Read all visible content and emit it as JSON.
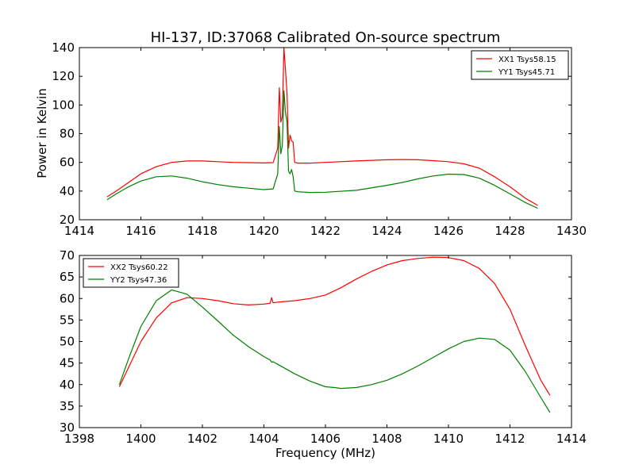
{
  "chart_data": [
    {
      "type": "line",
      "title": "HI-137, ID:37068 Calibrated On-source spectrum",
      "xlabel": "",
      "ylabel": "Power in Kelvin",
      "xlim": [
        1414,
        1430
      ],
      "ylim": [
        20,
        140
      ],
      "xticks": [
        1414,
        1416,
        1418,
        1420,
        1422,
        1424,
        1426,
        1428,
        1430
      ],
      "yticks": [
        20,
        40,
        60,
        80,
        100,
        120,
        140
      ],
      "legend_position": "top-right",
      "series": [
        {
          "name": "XX1 Tsys58.15",
          "color": "#ff0000",
          "x": [
            1414.9,
            1415.2,
            1415.6,
            1416.0,
            1416.5,
            1417.0,
            1417.5,
            1418.0,
            1418.5,
            1419.0,
            1419.5,
            1420.0,
            1420.3,
            1420.45,
            1420.5,
            1420.55,
            1420.6,
            1420.65,
            1420.7,
            1420.75,
            1420.8,
            1420.85,
            1420.9,
            1420.95,
            1421.0,
            1421.1,
            1421.5,
            1422.0,
            1423.0,
            1424.0,
            1424.5,
            1425.0,
            1425.5,
            1426.0,
            1426.5,
            1427.0,
            1427.5,
            1428.0,
            1428.5,
            1428.9
          ],
          "y": [
            36,
            40,
            46,
            52,
            57,
            60,
            61,
            61,
            60.5,
            60,
            59.8,
            59.6,
            59.8,
            70,
            112,
            88,
            92,
            140,
            125,
            108,
            70,
            79,
            75,
            74,
            60,
            59.5,
            59.5,
            60,
            61,
            61.8,
            62,
            61.8,
            61.2,
            60.5,
            59,
            56,
            50,
            43,
            35,
            30
          ]
        },
        {
          "name": "YY1 Tsys45.71",
          "color": "#008000",
          "x": [
            1414.9,
            1415.2,
            1415.6,
            1416.0,
            1416.5,
            1417.0,
            1417.5,
            1418.0,
            1418.5,
            1419.0,
            1419.5,
            1420.0,
            1420.3,
            1420.45,
            1420.5,
            1420.55,
            1420.6,
            1420.65,
            1420.7,
            1420.75,
            1420.8,
            1420.85,
            1420.9,
            1420.95,
            1421.0,
            1421.1,
            1421.5,
            1422.0,
            1423.0,
            1424.0,
            1424.5,
            1425.0,
            1425.5,
            1426.0,
            1426.5,
            1427.0,
            1427.5,
            1428.0,
            1428.5,
            1428.9
          ],
          "y": [
            34,
            38,
            43,
            47,
            50,
            50.5,
            49,
            46.5,
            44.5,
            43,
            42,
            41,
            41.5,
            52,
            85,
            66,
            72,
            110,
            95,
            88,
            54,
            52,
            55,
            50,
            40,
            39.5,
            39,
            39.2,
            40.5,
            44,
            46,
            48.5,
            50.5,
            51.8,
            51.5,
            49,
            44,
            38,
            32,
            28
          ]
        }
      ]
    },
    {
      "type": "line",
      "title": "",
      "xlabel": "Frequency (MHz)",
      "ylabel": "",
      "xlim": [
        1398,
        1414
      ],
      "ylim": [
        30,
        70
      ],
      "xticks": [
        1398,
        1400,
        1402,
        1404,
        1406,
        1408,
        1410,
        1412,
        1414
      ],
      "yticks": [
        30,
        35,
        40,
        45,
        50,
        55,
        60,
        65,
        70
      ],
      "legend_position": "top-left",
      "series": [
        {
          "name": "XX2 Tsys60.22",
          "color": "#ff0000",
          "x": [
            1399.3,
            1399.6,
            1400.0,
            1400.5,
            1401.0,
            1401.5,
            1402.0,
            1402.5,
            1403.0,
            1403.5,
            1404.0,
            1404.2,
            1404.25,
            1404.3,
            1404.5,
            1405.0,
            1405.5,
            1406.0,
            1406.5,
            1407.0,
            1407.5,
            1408.0,
            1408.5,
            1409.0,
            1409.5,
            1410.0,
            1410.5,
            1411.0,
            1411.5,
            1412.0,
            1412.5,
            1413.0,
            1413.3
          ],
          "y": [
            39.5,
            44,
            50,
            55.5,
            59,
            60.2,
            60,
            59.5,
            58.8,
            58.5,
            58.7,
            58.9,
            60.2,
            59,
            59.2,
            59.5,
            60,
            60.8,
            62.5,
            64.5,
            66.3,
            67.8,
            68.8,
            69.3,
            69.6,
            69.5,
            68.8,
            67,
            63.5,
            57.5,
            49,
            41,
            37.5
          ]
        },
        {
          "name": "YY2 Tsys47.36",
          "color": "#008000",
          "x": [
            1399.3,
            1399.6,
            1400.0,
            1400.5,
            1401.0,
            1401.5,
            1402.0,
            1402.5,
            1403.0,
            1403.5,
            1404.0,
            1404.2,
            1404.25,
            1404.3,
            1404.5,
            1405.0,
            1405.5,
            1406.0,
            1406.3,
            1406.5,
            1407.0,
            1407.5,
            1408.0,
            1408.5,
            1409.0,
            1409.5,
            1410.0,
            1410.5,
            1411.0,
            1411.5,
            1412.0,
            1412.5,
            1413.0,
            1413.3
          ],
          "y": [
            40,
            46,
            53.5,
            59.5,
            62,
            61,
            58,
            54.8,
            51.5,
            48.8,
            46.5,
            45.7,
            45.2,
            45.3,
            44.5,
            42.5,
            40.8,
            39.5,
            39.3,
            39.1,
            39.3,
            40,
            41,
            42.5,
            44.3,
            46.3,
            48.3,
            50,
            50.8,
            50.5,
            48,
            43,
            37,
            33.5
          ]
        }
      ]
    }
  ]
}
